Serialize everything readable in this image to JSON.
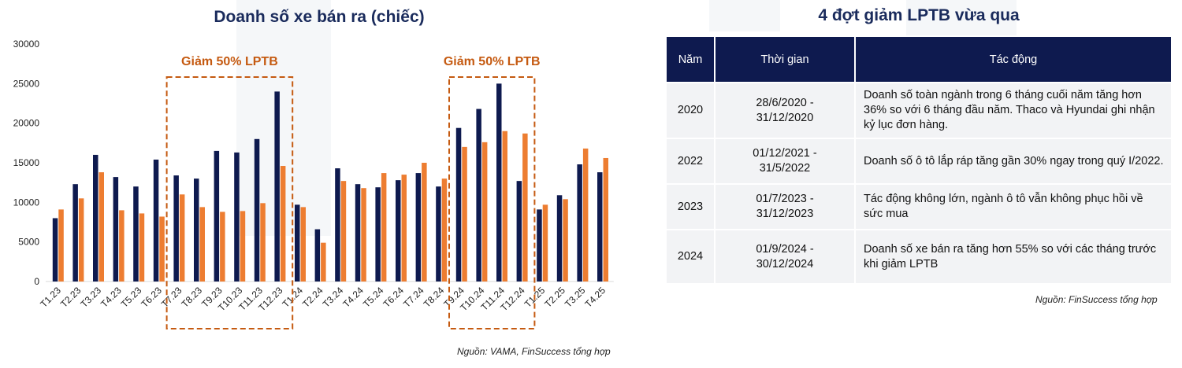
{
  "left_title": "Doanh số xe bán ra (chiếc)",
  "left_source": "Nguồn: VAMA, FinSuccess tổng hợp",
  "chart_data": {
    "type": "bar",
    "title": "Doanh số xe bán ra (chiếc)",
    "categories": [
      "T1.23",
      "T2.23",
      "T3.23",
      "T4.23",
      "T5.23",
      "T6.23",
      "T7.23",
      "T8.23",
      "T9.23",
      "T10.23",
      "T11.23",
      "T12.23",
      "T1.24",
      "T2.24",
      "T3.24",
      "T4.24",
      "T5.24",
      "T6.24",
      "T7.24",
      "T8.24",
      "T9.24",
      "T10.24",
      "T11.24",
      "T12.24",
      "T1.25",
      "T2.25",
      "T3.25",
      "T4.25"
    ],
    "series": [
      {
        "color": "#0e1a4f",
        "values": [
          8000,
          12300,
          16000,
          13200,
          12000,
          15400,
          13400,
          13000,
          16500,
          16300,
          18000,
          24000,
          9700,
          6600,
          14300,
          12300,
          11900,
          12800,
          13700,
          12000,
          19400,
          21800,
          25000,
          12700,
          9100,
          10900,
          14800,
          13800
        ]
      },
      {
        "color": "#ed7d31",
        "values": [
          9100,
          10500,
          13800,
          9000,
          8600,
          8200,
          11000,
          9400,
          8800,
          8900,
          9900,
          14600,
          9400,
          4900,
          12700,
          11800,
          13700,
          13500,
          15000,
          13000,
          17000,
          17600,
          19000,
          18700,
          9700,
          10400,
          16800,
          15600
        ]
      }
    ],
    "ylim": [
      0,
      30000
    ],
    "yticks": [
      0,
      5000,
      10000,
      15000,
      20000,
      25000,
      30000
    ],
    "grid": false,
    "legend": "none",
    "annotations": [
      {
        "label": "Giảm 50% LPTB",
        "from": "T7.23",
        "to": "T12.23",
        "color": "#c55a11"
      },
      {
        "label": "Giảm 50% LPTB",
        "from": "T9.24",
        "to": "T12.24",
        "color": "#c55a11"
      }
    ]
  },
  "right_title": "4 đợt giảm LPTB vừa qua",
  "table": {
    "headers": [
      "Năm",
      "Thời gian",
      "Tác động"
    ],
    "rows": [
      {
        "year": "2020",
        "period": "28/6/2020 -\n31/12/2020",
        "impact": "Doanh số toàn ngành trong 6 tháng cuối năm tăng hơn 36% so với 6 tháng đầu năm. Thaco và Hyundai ghi nhận kỷ lục đơn hàng."
      },
      {
        "year": "2022",
        "period": "01/12/2021 -\n31/5/2022",
        "impact": "Doanh số ô tô lắp ráp tăng gần 30% ngay trong quý I/2022."
      },
      {
        "year": "2023",
        "period": "01/7/2023 -\n31/12/2023",
        "impact": "Tác động không lớn, ngành ô tô vẫn không phục hồi về sức mua"
      },
      {
        "year": "2024",
        "period": "01/9/2024 -\n30/12/2024",
        "impact": "Doanh số xe bán ra tăng hơn 55% so với các tháng trước khi giảm LPTB"
      }
    ]
  },
  "right_source": "Nguồn: FinSuccess tổng hợp"
}
